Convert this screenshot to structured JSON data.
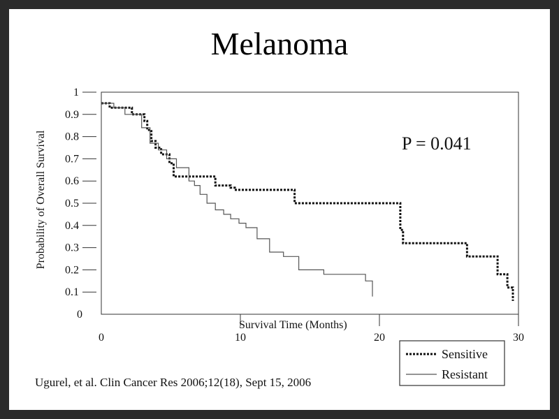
{
  "chart_data": {
    "type": "line",
    "title": "Melanoma",
    "xlabel": "Survival Time (Months)",
    "ylabel": "Probability of Overall Survival",
    "xlim": [
      0,
      30
    ],
    "ylim": [
      0,
      1
    ],
    "x_ticks": [
      0,
      10,
      20,
      30
    ],
    "y_ticks": [
      0,
      0.1,
      0.2,
      0.3,
      0.4,
      0.5,
      0.6,
      0.7,
      0.8,
      0.9,
      1
    ],
    "y_tick_labels": [
      "0",
      "0.1",
      "0.2",
      "0.3",
      "0.4",
      "0.5",
      "0.6",
      "0.7",
      "0.8",
      "0.9",
      "1"
    ],
    "annotation": "P = 0.041",
    "grid": false,
    "legend_position": "bottom-right-outside",
    "series": [
      {
        "name": "Sensitive",
        "style": "dotted",
        "color": "#111111",
        "x": [
          0,
          0.6,
          2.2,
          3.1,
          3.3,
          3.6,
          3.9,
          4.3,
          4.9,
          5.2,
          8.2,
          9.3,
          9.6,
          13.9,
          21.5,
          21.7,
          26.3,
          28.5,
          29.2,
          29.6
        ],
        "y": [
          0.95,
          0.93,
          0.9,
          0.87,
          0.83,
          0.78,
          0.75,
          0.72,
          0.68,
          0.62,
          0.58,
          0.57,
          0.56,
          0.5,
          0.38,
          0.32,
          0.26,
          0.18,
          0.12,
          0.06
        ]
      },
      {
        "name": "Resistant",
        "style": "solid",
        "color": "#555555",
        "x": [
          0,
          0.9,
          1.7,
          2.9,
          3.5,
          4.1,
          4.7,
          5.4,
          6.3,
          6.7,
          7.1,
          7.6,
          8.2,
          8.8,
          9.3,
          9.9,
          10.4,
          11.2,
          12.1,
          13.1,
          14.2,
          16.0,
          19.0,
          19.5
        ],
        "y": [
          0.95,
          0.93,
          0.9,
          0.84,
          0.77,
          0.74,
          0.7,
          0.66,
          0.6,
          0.58,
          0.54,
          0.5,
          0.47,
          0.45,
          0.43,
          0.41,
          0.39,
          0.34,
          0.28,
          0.26,
          0.2,
          0.18,
          0.15,
          0.08
        ]
      }
    ]
  },
  "citation": "Ugurel, et al. Clin Cancer Res 2006;12(18), Sept 15, 2006"
}
